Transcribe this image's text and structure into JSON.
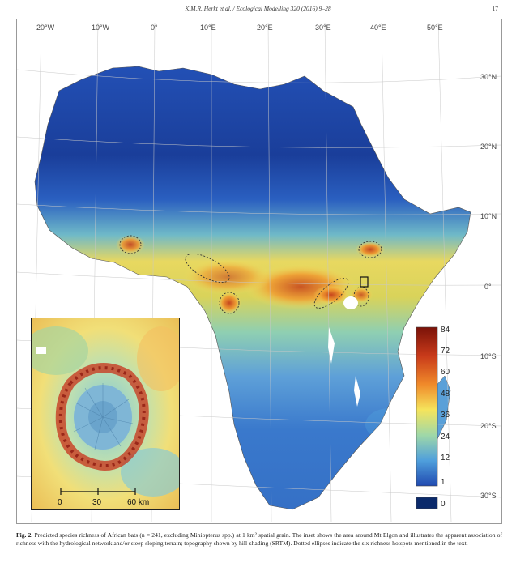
{
  "header": {
    "journal": "K.M.R. Herkt et al. / Ecological Modelling 320 (2016) 9–28",
    "page_number": "17"
  },
  "map": {
    "lon_labels": [
      "20°W",
      "10°W",
      "0°",
      "10°E",
      "20°E",
      "30°E",
      "40°E",
      "50°E"
    ],
    "lat_labels": [
      "30°N",
      "20°N",
      "10°N",
      "0°",
      "10°S",
      "20°S",
      "30°S"
    ],
    "colors": {
      "low": "#1f4fb0",
      "mid": "#7ec8c6",
      "high_mid": "#f2e26a",
      "high": "#e07a2a",
      "max": "#8e1a10",
      "zero": "#0b2a6b",
      "sea": "#ffffff"
    }
  },
  "legend": {
    "ticks": [
      "84",
      "72",
      "60",
      "48",
      "36",
      "24",
      "12",
      "1"
    ],
    "zero_label": "0"
  },
  "inset": {
    "scale_labels": [
      "0",
      "30",
      "60 km"
    ]
  },
  "caption": {
    "label": "Fig. 2.",
    "text": "Predicted species richness of African bats (n = 241, excluding Miniopterus spp.) at 1 km² spatial grain. The inset shows the area around Mt Elgon and illustrates the apparent association of richness with the hydrological network and/or steep sloping terrain; topography shown by hill-shading (SRTM). Dotted ellipses indicate the six richness hotspots mentioned in the text."
  }
}
